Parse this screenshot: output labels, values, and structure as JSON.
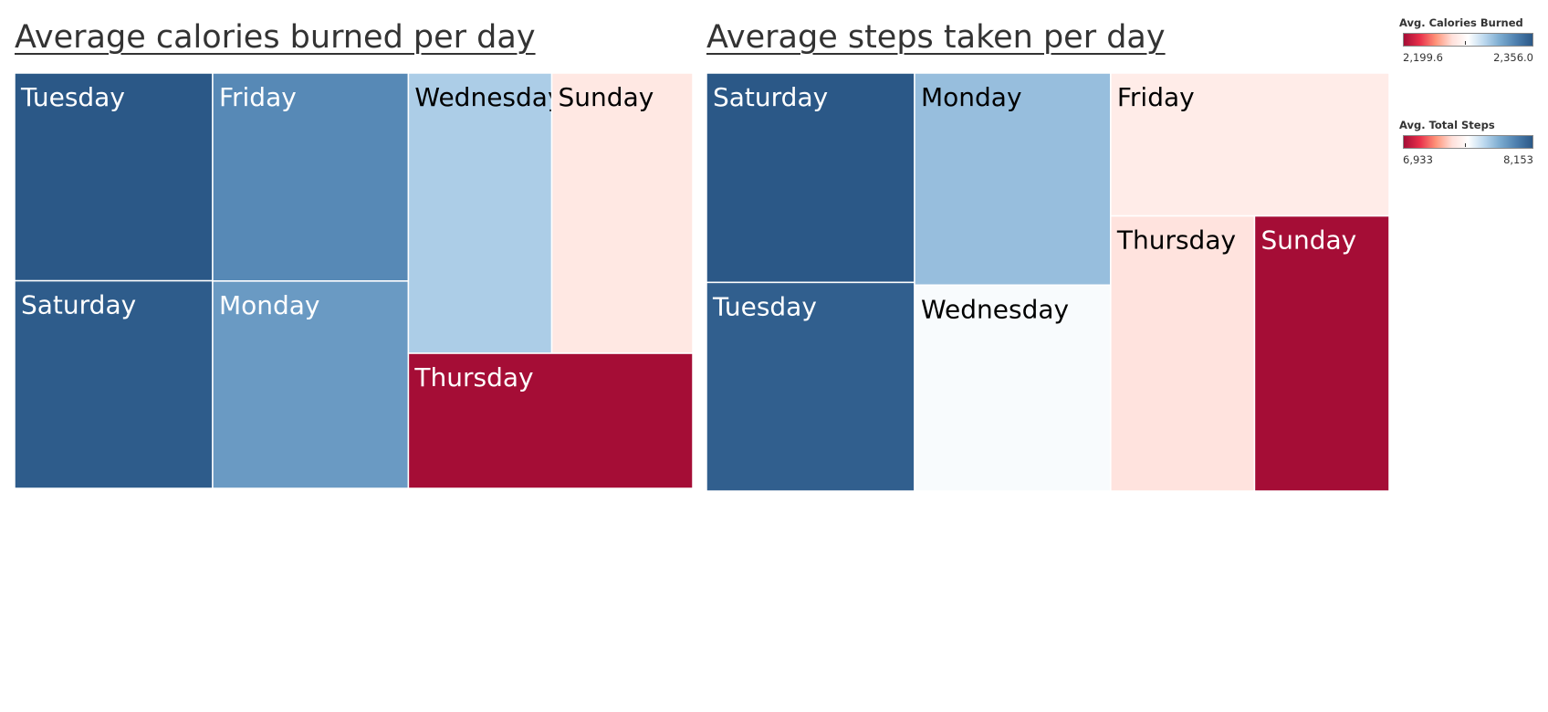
{
  "charts": {
    "calories": {
      "title": "Average calories burned per day"
    },
    "steps": {
      "title": "Average steps taken per day"
    }
  },
  "legends": {
    "calories": {
      "title": "Avg. Calories Burned",
      "min": "2,199.6",
      "max": "2,356.0"
    },
    "steps": {
      "title": "Avg. Total Steps",
      "min": "6,933",
      "max": "8,153"
    }
  },
  "colors": {
    "diverging_scale": [
      "#a50d36",
      "#e8304a",
      "#ff9479",
      "#ffe0da",
      "#ffffff",
      "#bcd8ee",
      "#7aaacf",
      "#4d7fae",
      "#2b5887"
    ],
    "tile_border": "#ffffff",
    "label_dark": "#000000",
    "label_light": "#ffffff"
  },
  "chart_data": [
    {
      "type": "treemap",
      "title": "Average calories burned per day",
      "color_measure": "Avg. Calories Burned",
      "color_range": [
        2199.6,
        2356.0
      ],
      "categories": [
        "Tuesday",
        "Saturday",
        "Friday",
        "Monday",
        "Wednesday",
        "Sunday",
        "Thursday"
      ],
      "values": [
        2356.0,
        2354.0,
        2332.0,
        2324.0,
        2302.0,
        2263.0,
        2199.6
      ]
    },
    {
      "type": "treemap",
      "title": "Average steps taken per day",
      "color_measure": "Avg. Total Steps",
      "color_range": [
        6933,
        8153
      ],
      "categories": [
        "Saturday",
        "Tuesday",
        "Monday",
        "Wednesday",
        "Friday",
        "Thursday",
        "Sunday"
      ],
      "values": [
        8153,
        8125,
        7781,
        7560,
        7448,
        7406,
        6933
      ]
    }
  ]
}
